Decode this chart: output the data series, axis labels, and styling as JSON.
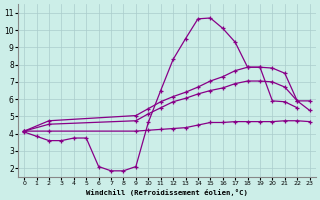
{
  "background_color": "#cceee8",
  "grid_color": "#aacccc",
  "line_color": "#880088",
  "xlabel": "Windchill (Refroidissement éolien,°C)",
  "ylabel_ticks": [
    2,
    3,
    4,
    5,
    6,
    7,
    8,
    9,
    10,
    11
  ],
  "xlim": [
    -0.5,
    23.5
  ],
  "ylim": [
    1.5,
    11.5
  ],
  "xticks": [
    0,
    1,
    2,
    3,
    4,
    5,
    6,
    7,
    8,
    9,
    10,
    11,
    12,
    13,
    14,
    15,
    16,
    17,
    18,
    19,
    20,
    21,
    22,
    23
  ],
  "line1_x": [
    0,
    1,
    2,
    3,
    4,
    5,
    6,
    7,
    8,
    9,
    10,
    11,
    12,
    13,
    14,
    15,
    16,
    17,
    18,
    19,
    20,
    21,
    22,
    23
  ],
  "line1_y": [
    4.1,
    3.85,
    3.6,
    3.6,
    3.75,
    3.75,
    2.1,
    1.85,
    1.85,
    2.1,
    4.65,
    6.5,
    8.3,
    9.5,
    10.65,
    10.7,
    10.1,
    9.3,
    7.85,
    7.85,
    5.9,
    5.85,
    5.5,
    null
  ],
  "line2_x": [
    0,
    2,
    9,
    10,
    11,
    12,
    13,
    14,
    15,
    16,
    17,
    18,
    19,
    20,
    21,
    22,
    23
  ],
  "line2_y": [
    4.15,
    4.75,
    5.05,
    5.45,
    5.85,
    6.15,
    6.4,
    6.7,
    7.05,
    7.3,
    7.65,
    7.85,
    7.85,
    7.8,
    7.5,
    5.9,
    5.9
  ],
  "line3_x": [
    0,
    2,
    9,
    10,
    11,
    12,
    13,
    14,
    15,
    16,
    17,
    18,
    19,
    20,
    21,
    22,
    23
  ],
  "line3_y": [
    4.15,
    4.55,
    4.75,
    5.15,
    5.5,
    5.85,
    6.05,
    6.3,
    6.5,
    6.65,
    6.9,
    7.05,
    7.05,
    7.0,
    6.7,
    5.9,
    5.35
  ],
  "line4_x": [
    0,
    2,
    9,
    10,
    11,
    12,
    13,
    14,
    15,
    16,
    17,
    18,
    19,
    20,
    21,
    22,
    23
  ],
  "line4_y": [
    4.15,
    4.15,
    4.15,
    4.2,
    4.25,
    4.3,
    4.35,
    4.5,
    4.65,
    4.65,
    4.7,
    4.7,
    4.7,
    4.7,
    4.75,
    4.75,
    4.7
  ]
}
